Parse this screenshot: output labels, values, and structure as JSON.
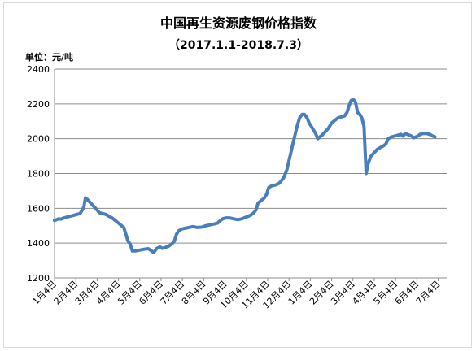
{
  "chart_data": {
    "type": "line",
    "title": "中国再生资源废钢价格指数",
    "subtitle": "（2017.1.1-2018.7.3）",
    "unit_label": "单位：元/吨",
    "xlabel": "",
    "ylabel": "",
    "ylim": [
      1200,
      2400
    ],
    "yticks": [
      1200,
      1400,
      1600,
      1800,
      2000,
      2200,
      2400
    ],
    "x_tick_labels": [
      "1月4日",
      "2月4日",
      "3月4日",
      "4月4日",
      "5月4日",
      "6月4日",
      "7月4日",
      "8月4日",
      "9月4日",
      "10月4日",
      "11月4日",
      "12月4日",
      "1月4日",
      "2月4日",
      "3月4日",
      "4月4日",
      "5月4日",
      "6月4日",
      "7月4日"
    ],
    "grid": "horizontal",
    "legend": "none",
    "line_color": "#4a7ebb",
    "series": [
      {
        "points": [
          [
            0.0,
            1530
          ],
          [
            0.1,
            1535
          ],
          [
            0.2,
            1540
          ],
          [
            0.3,
            1538
          ],
          [
            0.45,
            1545
          ],
          [
            0.6,
            1550
          ],
          [
            0.75,
            1555
          ],
          [
            0.9,
            1560
          ],
          [
            1.05,
            1565
          ],
          [
            1.2,
            1570
          ],
          [
            1.3,
            1590
          ],
          [
            1.38,
            1610
          ],
          [
            1.45,
            1660
          ],
          [
            1.55,
            1650
          ],
          [
            1.7,
            1630
          ],
          [
            1.85,
            1610
          ],
          [
            2.0,
            1590
          ],
          [
            2.1,
            1575
          ],
          [
            2.25,
            1570
          ],
          [
            2.4,
            1565
          ],
          [
            2.55,
            1555
          ],
          [
            2.7,
            1545
          ],
          [
            2.85,
            1530
          ],
          [
            3.0,
            1515
          ],
          [
            3.15,
            1500
          ],
          [
            3.25,
            1490
          ],
          [
            3.35,
            1450
          ],
          [
            3.45,
            1410
          ],
          [
            3.55,
            1395
          ],
          [
            3.65,
            1355
          ],
          [
            3.8,
            1355
          ],
          [
            4.0,
            1360
          ],
          [
            4.2,
            1365
          ],
          [
            4.4,
            1368
          ],
          [
            4.55,
            1355
          ],
          [
            4.65,
            1345
          ],
          [
            4.8,
            1370
          ],
          [
            4.95,
            1378
          ],
          [
            5.05,
            1370
          ],
          [
            5.2,
            1375
          ],
          [
            5.35,
            1382
          ],
          [
            5.5,
            1395
          ],
          [
            5.62,
            1410
          ],
          [
            5.72,
            1450
          ],
          [
            5.82,
            1470
          ],
          [
            5.95,
            1480
          ],
          [
            6.1,
            1485
          ],
          [
            6.3,
            1490
          ],
          [
            6.5,
            1495
          ],
          [
            6.7,
            1490
          ],
          [
            6.9,
            1492
          ],
          [
            7.1,
            1500
          ],
          [
            7.3,
            1505
          ],
          [
            7.5,
            1510
          ],
          [
            7.65,
            1515
          ],
          [
            7.78,
            1530
          ],
          [
            7.9,
            1540
          ],
          [
            8.05,
            1545
          ],
          [
            8.2,
            1545
          ],
          [
            8.4,
            1540
          ],
          [
            8.6,
            1535
          ],
          [
            8.8,
            1540
          ],
          [
            9.0,
            1550
          ],
          [
            9.2,
            1560
          ],
          [
            9.35,
            1575
          ],
          [
            9.45,
            1590
          ],
          [
            9.55,
            1630
          ],
          [
            9.7,
            1645
          ],
          [
            9.85,
            1660
          ],
          [
            9.95,
            1680
          ],
          [
            10.05,
            1720
          ],
          [
            10.2,
            1730
          ],
          [
            10.4,
            1735
          ],
          [
            10.55,
            1745
          ],
          [
            10.75,
            1775
          ],
          [
            10.9,
            1820
          ],
          [
            11.05,
            1900
          ],
          [
            11.2,
            1980
          ],
          [
            11.3,
            2030
          ],
          [
            11.4,
            2080
          ],
          [
            11.5,
            2120
          ],
          [
            11.62,
            2140
          ],
          [
            11.72,
            2140
          ],
          [
            11.85,
            2120
          ],
          [
            11.95,
            2090
          ],
          [
            12.05,
            2070
          ],
          [
            12.15,
            2050
          ],
          [
            12.25,
            2030
          ],
          [
            12.35,
            2000
          ],
          [
            12.45,
            2010
          ],
          [
            12.55,
            2020
          ],
          [
            12.7,
            2040
          ],
          [
            12.85,
            2060
          ],
          [
            13.0,
            2090
          ],
          [
            13.15,
            2105
          ],
          [
            13.3,
            2120
          ],
          [
            13.45,
            2125
          ],
          [
            13.6,
            2130
          ],
          [
            13.72,
            2150
          ],
          [
            13.82,
            2190
          ],
          [
            13.92,
            2220
          ],
          [
            14.02,
            2225
          ],
          [
            14.12,
            2210
          ],
          [
            14.22,
            2150
          ],
          [
            14.32,
            2140
          ],
          [
            14.42,
            2120
          ],
          [
            14.52,
            2070
          ],
          [
            14.62,
            1800
          ],
          [
            14.72,
            1860
          ],
          [
            14.85,
            1900
          ],
          [
            15.0,
            1920
          ],
          [
            15.15,
            1940
          ],
          [
            15.3,
            1950
          ],
          [
            15.45,
            1960
          ],
          [
            15.55,
            1970
          ],
          [
            15.65,
            2000
          ],
          [
            15.8,
            2010
          ],
          [
            15.95,
            2015
          ],
          [
            16.1,
            2020
          ],
          [
            16.25,
            2025
          ],
          [
            16.35,
            2015
          ],
          [
            16.45,
            2030
          ],
          [
            16.55,
            2025
          ],
          [
            16.65,
            2020
          ],
          [
            16.75,
            2015
          ],
          [
            16.85,
            2005
          ],
          [
            16.95,
            2010
          ],
          [
            17.05,
            2015
          ],
          [
            17.15,
            2025
          ],
          [
            17.3,
            2030
          ],
          [
            17.45,
            2030
          ],
          [
            17.6,
            2025
          ],
          [
            17.75,
            2015
          ],
          [
            17.85,
            2010
          ]
        ]
      }
    ]
  }
}
